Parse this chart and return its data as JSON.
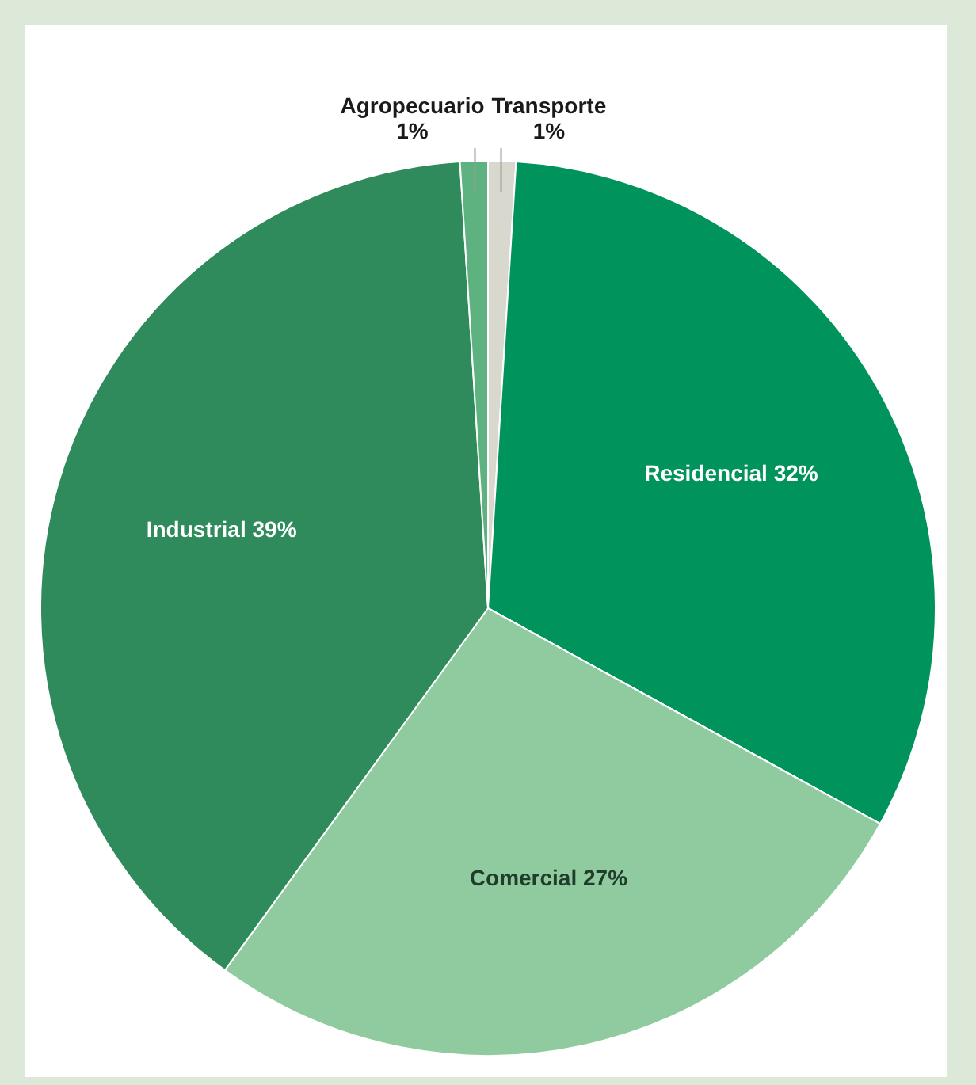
{
  "chart_data": {
    "type": "pie",
    "categories": [
      "Transporte",
      "Residencial",
      "Comercial",
      "Industrial",
      "Agropecuario"
    ],
    "values": [
      1,
      32,
      27,
      39,
      1
    ],
    "value_labels": [
      "1%",
      "32%",
      "27%",
      "39%",
      "1%"
    ],
    "colors": [
      "#d8d8cf",
      "#00935b",
      "#8fcb9f",
      "#2f8b5b",
      "#5db27f"
    ]
  }
}
